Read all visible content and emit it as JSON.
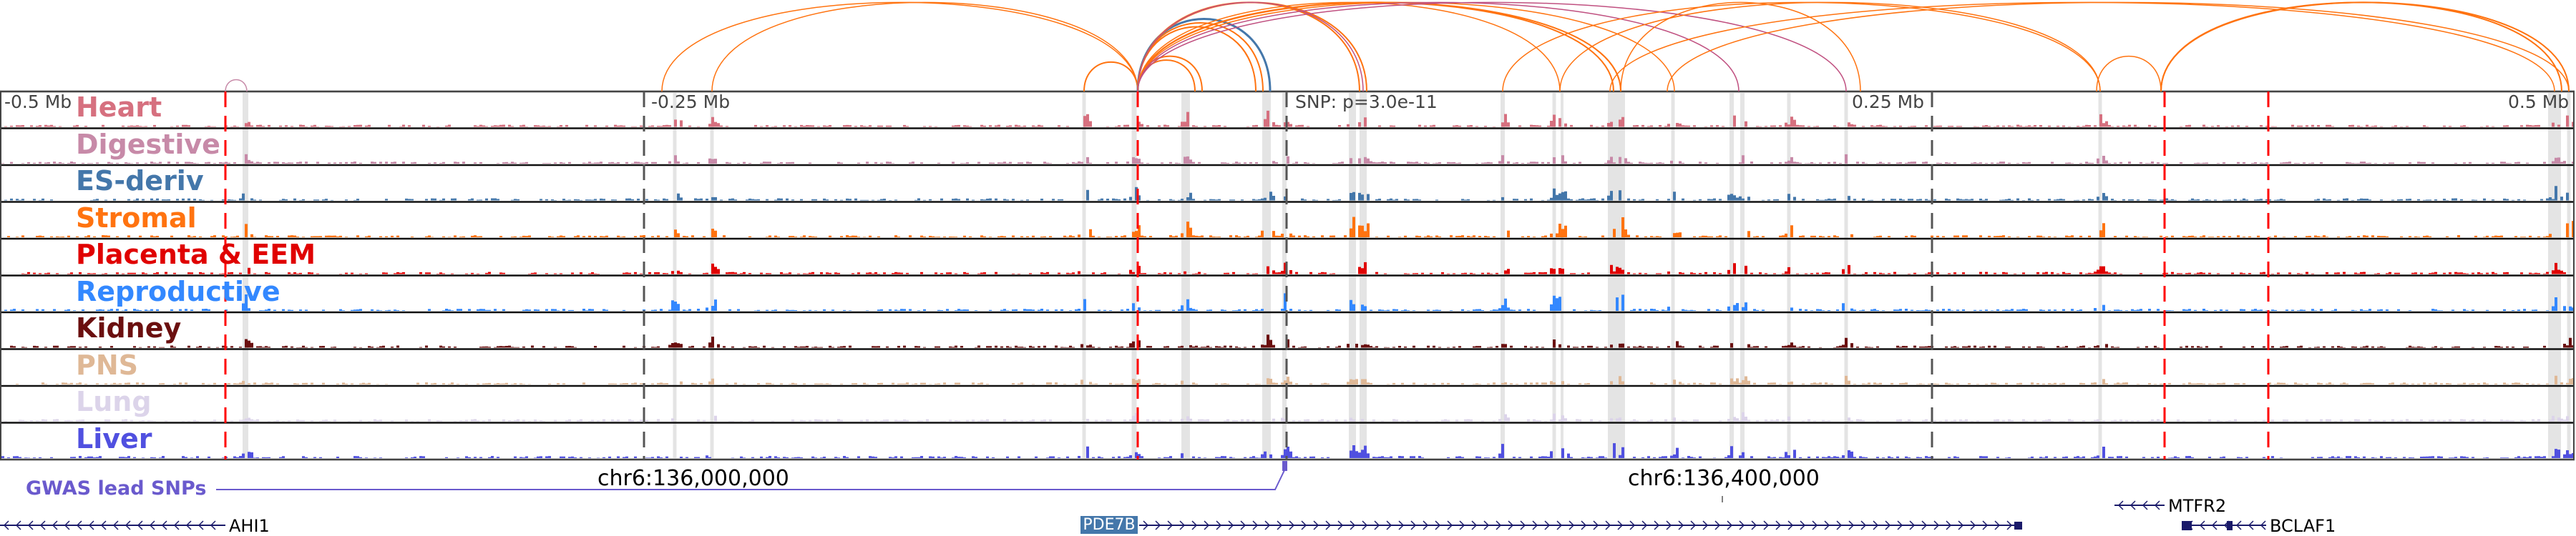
{
  "tracks": [
    {
      "label": "Heart",
      "color": "#d6707f"
    },
    {
      "label": "Digestive",
      "color": "#c78aa8"
    },
    {
      "label": "ES-deriv",
      "color": "#4477aa"
    },
    {
      "label": "Stromal",
      "color": "#ff7310"
    },
    {
      "label": "Placenta & EEM",
      "color": "#e00000"
    },
    {
      "label": "Reproductive",
      "color": "#3388ff"
    },
    {
      "label": "Kidney",
      "color": "#6b0f0f"
    },
    {
      "label": "PNS",
      "color": "#dfb896"
    },
    {
      "label": "Lung",
      "color": "#dcd4ea"
    },
    {
      "label": "Liver",
      "color": "#5050e0"
    }
  ],
  "axis": {
    "left": "-0.5 Mb",
    "midleft": "-0.25 Mb",
    "midright": "0.25 Mb",
    "right": "0.5 Mb"
  },
  "snp": {
    "label": "SNP: p=3.0e-11"
  },
  "coords": {
    "c1": "chr6:136,000,000",
    "c2": "chr6:136,400,000"
  },
  "gwas": {
    "label": "GWAS lead SNPs",
    "color": "#6a5acd"
  },
  "genes": {
    "ahi1": "AHI1",
    "pde7b": "PDE7B",
    "mtfr2": "MTFR2",
    "bclaf1": "BCLAF1"
  },
  "colors": {
    "arc_orange": "#ff7310",
    "arc_blue": "#4477aa",
    "arc_pink": "#c05080",
    "highlight": "#e4e4e4",
    "marker": "#ff0000"
  }
}
